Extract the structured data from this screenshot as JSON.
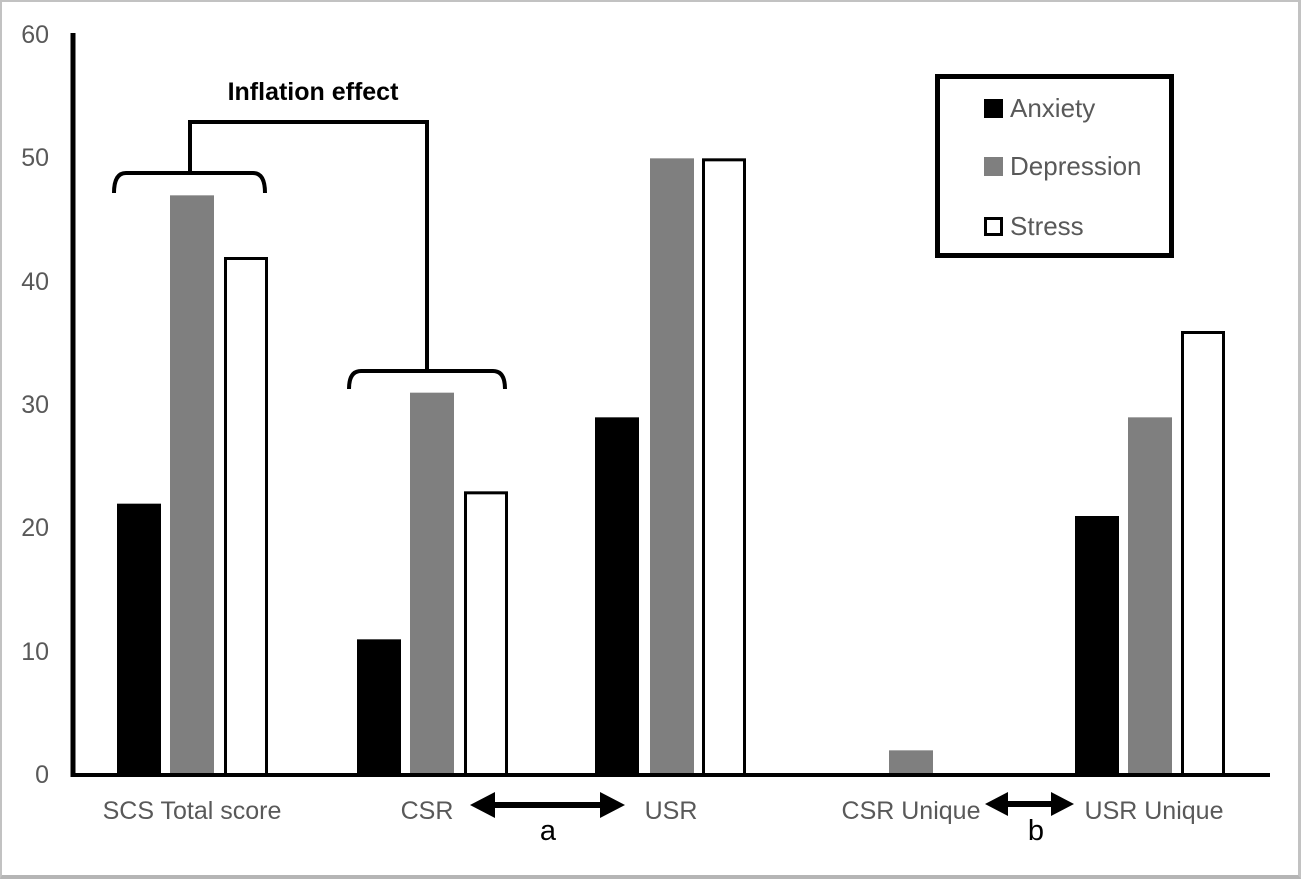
{
  "chart_data": {
    "type": "bar",
    "title": "",
    "xlabel": "",
    "ylabel": "",
    "categories": [
      "SCS Total score",
      "CSR",
      "USR",
      "CSR Unique",
      "USR Unique"
    ],
    "series": [
      {
        "name": "Anxiety",
        "fill": "#000000",
        "border": "#000000",
        "values": [
          22,
          11,
          29,
          0,
          21
        ]
      },
      {
        "name": "Depression",
        "fill": "#7f7f7f",
        "border": "#7f7f7f",
        "values": [
          47,
          31,
          50,
          2,
          29
        ]
      },
      {
        "name": "Stress",
        "fill": "#ffffff",
        "border": "#000000",
        "values": [
          42,
          23,
          50,
          0,
          36
        ]
      }
    ],
    "ylim": [
      0,
      60
    ],
    "yticks": [
      0,
      10,
      20,
      30,
      40,
      50,
      60
    ],
    "grid": false,
    "legend_position": "top-right",
    "annotations": {
      "inflation_label": "Inflation effect",
      "inflation_bracket_groups": [
        "SCS Total score",
        "CSR"
      ],
      "arrow_a": {
        "label": "a",
        "between": [
          "CSR",
          "USR"
        ]
      },
      "arrow_b": {
        "label": "b",
        "between": [
          "CSR Unique",
          "USR Unique"
        ]
      }
    }
  },
  "colors": {
    "text_gray": "#595959",
    "axis_black": "#000000",
    "frame_gray": "#c2c2c2"
  }
}
